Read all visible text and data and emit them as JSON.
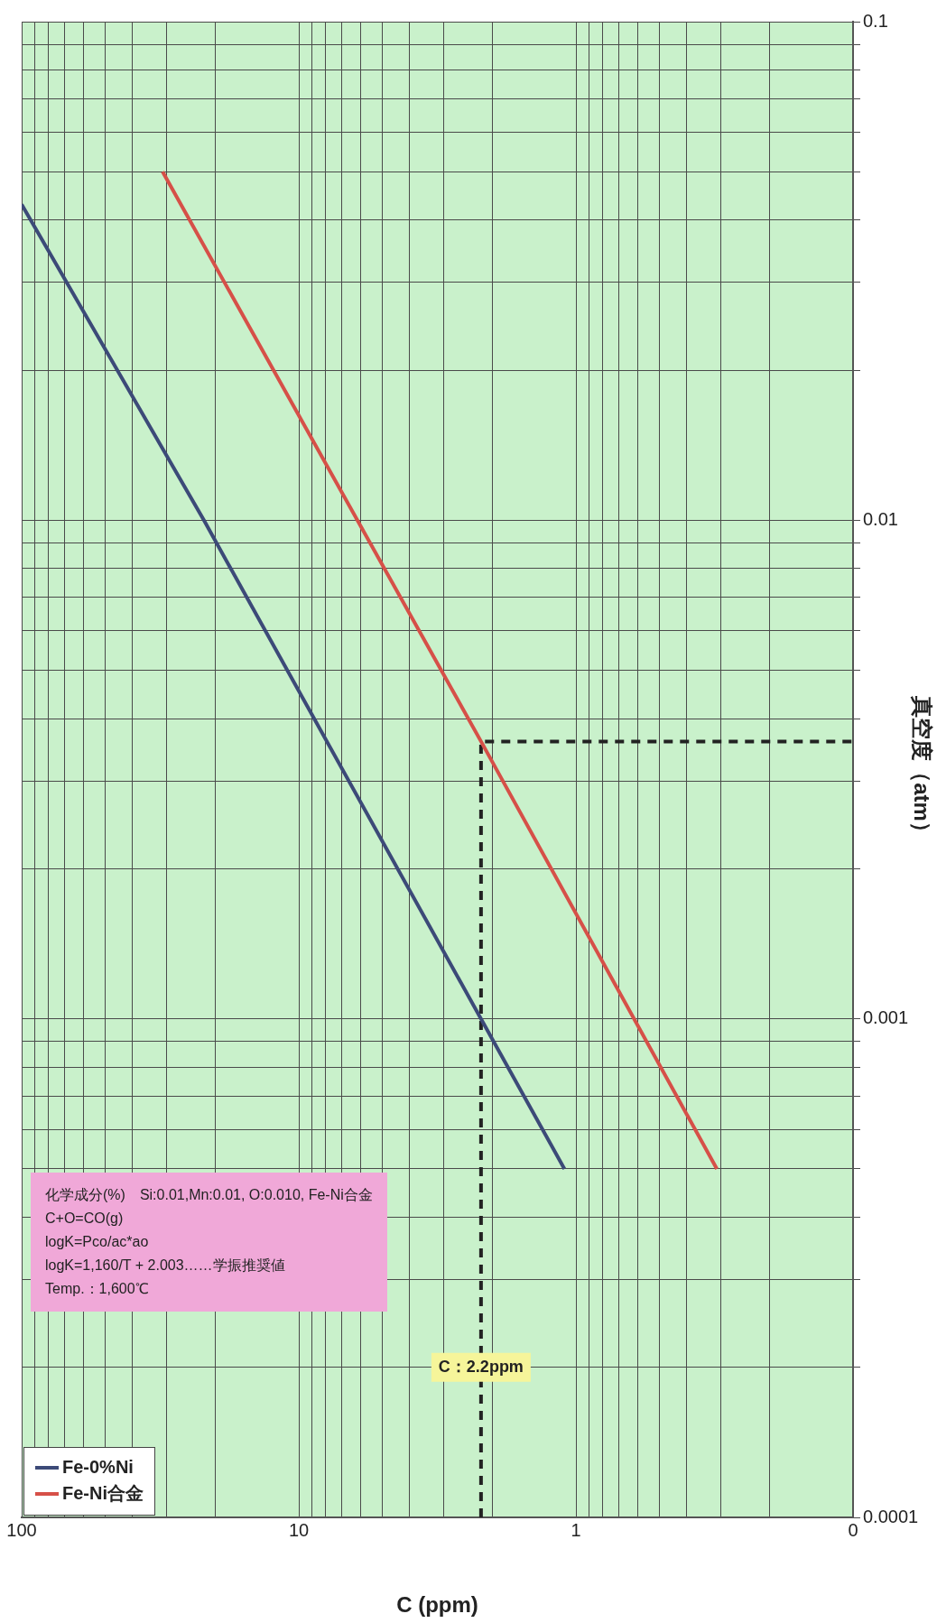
{
  "chart_data": {
    "type": "line",
    "xlabel": "C (ppm)",
    "ylabel": "真空度（atm）",
    "log": "xy",
    "xlim": [
      100,
      0.1
    ],
    "ylim": [
      0.0001,
      0.1
    ],
    "yticks": [
      0.0001,
      {
        "value": 0.0002,
        "label": null
      },
      {
        "value": 0.0003,
        "label": null
      },
      {
        "value": 0.0004,
        "label": null
      },
      {
        "value": 0.0005,
        "label": null
      },
      {
        "value": 0.0006,
        "label": null
      },
      {
        "value": 0.0007,
        "label": null
      },
      {
        "value": 0.0008,
        "label": null
      },
      {
        "value": 0.0009,
        "label": null
      },
      0.001,
      {
        "value": 0.002,
        "label": null
      },
      {
        "value": 0.003,
        "label": null
      },
      {
        "value": 0.004,
        "label": null
      },
      {
        "value": 0.005,
        "label": null
      },
      {
        "value": 0.006,
        "label": null
      },
      {
        "value": 0.007,
        "label": null
      },
      {
        "value": 0.008,
        "label": null
      },
      {
        "value": 0.009,
        "label": null
      },
      0.01,
      {
        "value": 0.02,
        "label": null
      },
      {
        "value": 0.03,
        "label": null
      },
      {
        "value": 0.04,
        "label": null
      },
      {
        "value": 0.05,
        "label": null
      },
      {
        "value": 0.06,
        "label": null
      },
      {
        "value": 0.07,
        "label": null
      },
      {
        "value": 0.08,
        "label": null
      },
      {
        "value": 0.09,
        "label": null
      },
      0.1
    ],
    "xticks": [
      {
        "value": 0.1,
        "label": "0"
      },
      {
        "value": 0.2,
        "label": null
      },
      {
        "value": 0.3,
        "label": null
      },
      {
        "value": 0.4,
        "label": null
      },
      {
        "value": 0.5,
        "label": null
      },
      {
        "value": 0.6,
        "label": null
      },
      {
        "value": 0.7,
        "label": null
      },
      {
        "value": 0.8,
        "label": null
      },
      {
        "value": 0.9,
        "label": null
      },
      1,
      {
        "value": 2,
        "label": null
      },
      {
        "value": 3,
        "label": null
      },
      {
        "value": 4,
        "label": null
      },
      {
        "value": 5,
        "label": null
      },
      {
        "value": 6,
        "label": null
      },
      {
        "value": 7,
        "label": null
      },
      {
        "value": 8,
        "label": null
      },
      {
        "value": 9,
        "label": null
      },
      10,
      {
        "value": 20,
        "label": null
      },
      {
        "value": 30,
        "label": null
      },
      {
        "value": 40,
        "label": null
      },
      {
        "value": 50,
        "label": null
      },
      {
        "value": 60,
        "label": null
      },
      {
        "value": 70,
        "label": null
      },
      {
        "value": 80,
        "label": null
      },
      {
        "value": 90,
        "label": null
      },
      100
    ],
    "grid": true,
    "legend": "bottom left",
    "marker": "none",
    "series": [
      {
        "name": "Fe-0%Ni",
        "color": "#3c4a78",
        "x": [
          1.1,
          2.2,
          22,
          100
        ],
        "values": [
          0.0005,
          0.001,
          0.01,
          0.043
        ]
      },
      {
        "name": "Fe-Ni合金",
        "color": "#d65048",
        "x": [
          0.31,
          2.2,
          31
        ],
        "values": [
          0.0005,
          0.0036,
          0.05
        ]
      },
      {
        "color": "#222222",
        "line_style": "dashed",
        "x": [
          2.2,
          2.2,
          0.1
        ],
        "values": [
          0.0001,
          0.0036,
          0.0036
        ]
      }
    ],
    "annotations": [
      "化学成分(%)　Si:0.01,Mn:0.01, O:0.010, Fe-Ni合金",
      "C+O=CO(g)",
      "logK=Pco/ac*ao",
      "logK=1,160/T + 2.003……学振推奨値",
      "Temp.：1,600℃",
      {
        "text": "C：2.2ppm",
        "x": 2.2,
        "y": 0.0002
      }
    ]
  }
}
